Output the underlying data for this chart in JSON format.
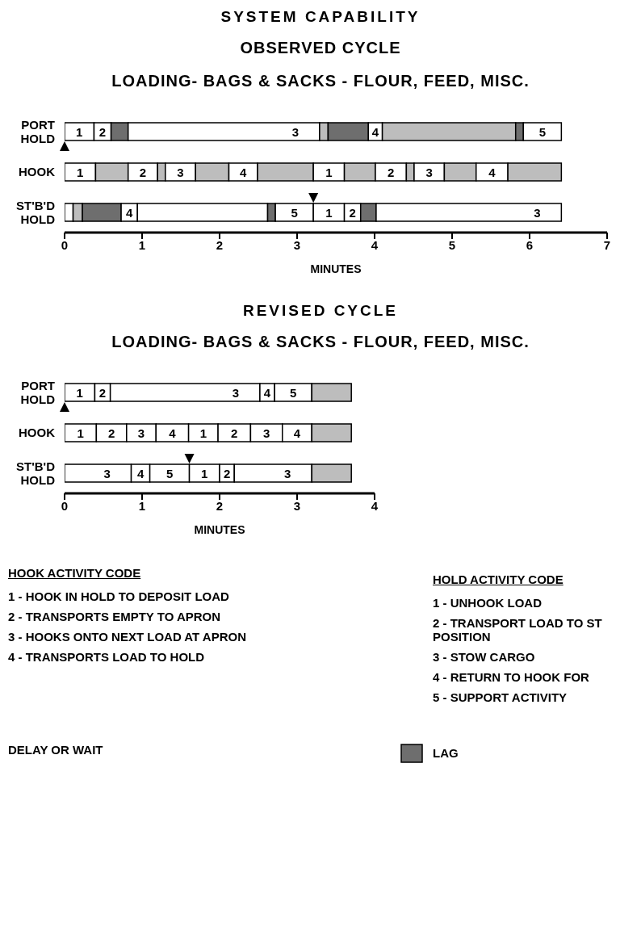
{
  "chart_data": [
    {
      "type": "bar",
      "orientation": "horizontal",
      "stacked": true,
      "title": "SYSTEM CAPABILITY",
      "subtitle": "OBSERVED CYCLE\nLOADING- BAGS & SACKS - FLOUR, FEED, MISC.",
      "xlabel": "MINUTES",
      "categories": [
        "PORT HOLD",
        "HOOK",
        "ST'B'D HOLD"
      ],
      "xlim": [
        0,
        7
      ],
      "xticks": [
        0,
        1,
        2,
        3,
        4,
        5,
        6,
        7
      ],
      "series": [
        {
          "values": [
            0.38,
            0.4,
            0.11
          ],
          "colors": [
            "#ffffff",
            "#ffffff",
            "#ffffff"
          ]
        },
        {
          "values": [
            0.22,
            0.42,
            0.12
          ],
          "colors": [
            "#ffffff",
            "#bdbdbd",
            "#bdbdbd"
          ]
        },
        {
          "values": [
            0.22,
            0.38,
            0.5
          ],
          "colors": [
            "#6e6e6e",
            "#ffffff",
            "#6e6e6e"
          ]
        },
        {
          "values": [
            2.47,
            0.1,
            0.21
          ],
          "colors": [
            "#ffffff",
            "#bdbdbd",
            "#ffffff"
          ]
        },
        {
          "values": [
            0.11,
            0.39,
            1.68
          ],
          "colors": [
            "#bdbdbd",
            "#ffffff",
            "#ffffff"
          ]
        },
        {
          "values": [
            0.52,
            0.43,
            0.1
          ],
          "colors": [
            "#6e6e6e",
            "#bdbdbd",
            "#6e6e6e"
          ]
        },
        {
          "values": [
            0.18,
            0.37,
            0.49
          ],
          "colors": [
            "#ffffff",
            "#ffffff",
            "#ffffff"
          ]
        },
        {
          "values": [
            1.72,
            0.72,
            0.4
          ],
          "colors": [
            "#bdbdbd",
            "#bdbdbd",
            "#ffffff"
          ]
        },
        {
          "values": [
            0.1,
            0.4,
            0.21
          ],
          "colors": [
            "#6e6e6e",
            "#ffffff",
            "#ffffff"
          ]
        },
        {
          "values": [
            0.49,
            0.4,
            0.2
          ],
          "colors": [
            "#ffffff",
            "#bdbdbd",
            "#6e6e6e"
          ]
        },
        {
          "values": [
            null,
            0.4,
            2.39
          ],
          "colors": [
            null,
            "#ffffff",
            "#ffffff"
          ]
        },
        {
          "values": [
            null,
            0.1,
            null
          ],
          "colors": [
            null,
            "#bdbdbd",
            null
          ]
        },
        {
          "values": [
            null,
            0.39,
            null
          ],
          "colors": [
            null,
            "#ffffff",
            null
          ]
        },
        {
          "values": [
            null,
            0.41,
            null
          ],
          "colors": [
            null,
            "#bdbdbd",
            null
          ]
        },
        {
          "values": [
            null,
            0.41,
            null
          ],
          "colors": [
            null,
            "#ffffff",
            null
          ]
        },
        {
          "values": [
            null,
            0.69,
            null
          ],
          "colors": [
            null,
            "#bdbdbd",
            null
          ]
        }
      ],
      "annotations": [
        {
          "text": "1",
          "x": 0.38,
          "y": "PORT HOLD"
        },
        {
          "text": "2",
          "x": 0.6,
          "y": "PORT HOLD"
        },
        {
          "text": "3",
          "x": 3.29,
          "y": "PORT HOLD"
        },
        {
          "text": "4",
          "x": 4.1,
          "y": "PORT HOLD"
        },
        {
          "text": "5",
          "x": 6.41,
          "y": "PORT HOLD"
        },
        {
          "text": "1",
          "x": 0.4,
          "y": "HOOK"
        },
        {
          "text": "2",
          "x": 1.2,
          "y": "HOOK"
        },
        {
          "text": "3",
          "x": 1.69,
          "y": "HOOK"
        },
        {
          "text": "4",
          "x": 2.49,
          "y": "HOOK"
        },
        {
          "text": "1",
          "x": 3.61,
          "y": "HOOK"
        },
        {
          "text": "2",
          "x": 4.41,
          "y": "HOOK"
        },
        {
          "text": "3",
          "x": 4.9,
          "y": "HOOK"
        },
        {
          "text": "4",
          "x": 5.72,
          "y": "HOOK"
        },
        {
          "text": "4",
          "x": 0.94,
          "y": "ST'B'D HOLD"
        },
        {
          "text": "5",
          "x": 3.21,
          "y": "ST'B'D HOLD"
        },
        {
          "text": "1",
          "x": 3.61,
          "y": "ST'B'D HOLD"
        },
        {
          "text": "2",
          "x": 3.82,
          "y": "ST'B'D HOLD"
        },
        {
          "text": "3",
          "x": 6.41,
          "y": "ST'B'D HOLD"
        }
      ]
    },
    {
      "type": "bar",
      "orientation": "horizontal",
      "stacked": true,
      "title": "REVISED CYCLE",
      "subtitle": "LOADING- BAGS & SACKS - FLOUR, FEED, MISC.",
      "xlabel": "MINUTES",
      "categories": [
        "PORT HOLD",
        "HOOK",
        "ST'B'D HOLD"
      ],
      "xlim": [
        0,
        4
      ],
      "xticks": [
        0,
        1,
        2,
        3,
        4
      ],
      "series": [
        {
          "values": [
            0.39,
            0.41,
            0.86
          ],
          "colors": [
            "#ffffff",
            "#ffffff",
            "#ffffff"
          ]
        },
        {
          "values": [
            0.2,
            0.39,
            0.24
          ],
          "colors": [
            "#ffffff",
            "#ffffff",
            "#ffffff"
          ]
        },
        {
          "values": [
            1.93,
            0.38,
            0.51
          ],
          "colors": [
            "#ffffff",
            "#ffffff",
            "#ffffff"
          ]
        },
        {
          "values": [
            0.19,
            0.42,
            0.39
          ],
          "colors": [
            "#ffffff",
            "#ffffff",
            "#ffffff"
          ]
        },
        {
          "values": [
            0.48,
            0.38,
            0.19
          ],
          "colors": [
            "#ffffff",
            "#ffffff",
            "#ffffff"
          ]
        },
        {
          "values": [
            0.51,
            0.42,
            1.0
          ],
          "colors": [
            "#bdbdbd",
            "#ffffff",
            "#ffffff"
          ]
        },
        {
          "values": [
            null,
            0.41,
            0.51
          ],
          "colors": [
            null,
            "#ffffff",
            "#bdbdbd"
          ]
        },
        {
          "values": [
            null,
            0.38,
            null
          ],
          "colors": [
            null,
            "#ffffff",
            null
          ]
        },
        {
          "values": [
            null,
            0.51,
            null
          ],
          "colors": [
            null,
            "#bdbdbd",
            null
          ]
        }
      ],
      "annotations": [
        {
          "text": "1",
          "x": 0.39,
          "y": "PORT HOLD"
        },
        {
          "text": "2",
          "x": 0.59,
          "y": "PORT HOLD"
        },
        {
          "text": "3",
          "x": 2.52,
          "y": "PORT HOLD"
        },
        {
          "text": "4",
          "x": 2.71,
          "y": "PORT HOLD"
        },
        {
          "text": "5",
          "x": 3.19,
          "y": "PORT HOLD"
        },
        {
          "text": "1",
          "x": 0.41,
          "y": "HOOK"
        },
        {
          "text": "2",
          "x": 0.8,
          "y": "HOOK"
        },
        {
          "text": "3",
          "x": 1.18,
          "y": "HOOK"
        },
        {
          "text": "4",
          "x": 1.6,
          "y": "HOOK"
        },
        {
          "text": "1",
          "x": 1.98,
          "y": "HOOK"
        },
        {
          "text": "2",
          "x": 2.4,
          "y": "HOOK"
        },
        {
          "text": "3",
          "x": 2.81,
          "y": "HOOK"
        },
        {
          "text": "4",
          "x": 3.19,
          "y": "HOOK"
        },
        {
          "text": "3",
          "x": 0.86,
          "y": "ST'B'D HOLD"
        },
        {
          "text": "4",
          "x": 1.1,
          "y": "ST'B'D HOLD"
        },
        {
          "text": "5",
          "x": 1.61,
          "y": "ST'B'D HOLD"
        },
        {
          "text": "1",
          "x": 2.0,
          "y": "ST'B'D HOLD"
        },
        {
          "text": "2",
          "x": 2.19,
          "y": "ST'B'D HOLD"
        },
        {
          "text": "3",
          "x": 3.19,
          "y": "ST'B'D HOLD"
        },
        "HOOK ACTIVITY CODE",
        "1 - HOOK IN HOLD TO DEPOSIT LOAD",
        "2 - TRANSPORTS EMPTY TO APRON",
        "3 - HOOKS ONTO NEXT LOAD AT APRON",
        "4 - TRANSPORTS LOAD TO HOLD",
        "HOLD ACTIVITY CODE",
        "1 - UNHOOK LOAD",
        "2 - TRANSPORT LOAD TO ST POSITION",
        "3 - STOW CARGO",
        "4 - RETURN TO HOOK FOR",
        "5 - SUPPORT ACTIVITY",
        "DELAY OR WAIT",
        "LAG"
      ]
    }
  ]
}
